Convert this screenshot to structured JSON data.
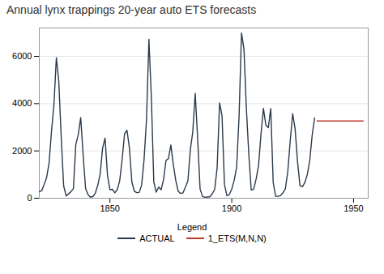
{
  "chart_data": {
    "type": "line",
    "title": "Annual lynx trappings 20-year auto ETS forecasts",
    "series": [
      {
        "name": "ACTUAL",
        "color": "#2b3a4a",
        "x": [
          1821,
          1822,
          1823,
          1824,
          1825,
          1826,
          1827,
          1828,
          1829,
          1830,
          1831,
          1832,
          1833,
          1834,
          1835,
          1836,
          1837,
          1838,
          1839,
          1840,
          1841,
          1842,
          1843,
          1844,
          1845,
          1846,
          1847,
          1848,
          1849,
          1850,
          1851,
          1852,
          1853,
          1854,
          1855,
          1856,
          1857,
          1858,
          1859,
          1860,
          1861,
          1862,
          1863,
          1864,
          1865,
          1866,
          1867,
          1868,
          1869,
          1870,
          1871,
          1872,
          1873,
          1874,
          1875,
          1876,
          1877,
          1878,
          1879,
          1880,
          1881,
          1882,
          1883,
          1884,
          1885,
          1886,
          1887,
          1888,
          1889,
          1890,
          1891,
          1892,
          1893,
          1894,
          1895,
          1896,
          1897,
          1898,
          1899,
          1900,
          1901,
          1902,
          1903,
          1904,
          1905,
          1906,
          1907,
          1908,
          1909,
          1910,
          1911,
          1912,
          1913,
          1914,
          1915,
          1916,
          1917,
          1918,
          1919,
          1920,
          1921,
          1922,
          1923,
          1924,
          1925,
          1926,
          1927,
          1928,
          1929,
          1930,
          1931,
          1932,
          1933,
          1934
        ],
        "values": [
          269,
          321,
          585,
          871,
          1475,
          2821,
          3928,
          5943,
          4950,
          2577,
          523,
          98,
          184,
          279,
          409,
          2285,
          2685,
          3409,
          1824,
          409,
          151,
          45,
          68,
          213,
          546,
          1033,
          2129,
          2536,
          957,
          361,
          377,
          225,
          360,
          731,
          1638,
          2725,
          2871,
          2119,
          684,
          299,
          236,
          245,
          552,
          1623,
          3311,
          6721,
          4245,
          687,
          255,
          473,
          358,
          784,
          1594,
          1676,
          2251,
          1426,
          756,
          299,
          201,
          229,
          469,
          736,
          2042,
          2811,
          4431,
          2511,
          389,
          73,
          39,
          49,
          59,
          188,
          377,
          1292,
          4031,
          3495,
          587,
          105,
          153,
          387,
          758,
          1307,
          3465,
          6991,
          6313,
          3794,
          1836,
          345,
          382,
          808,
          1388,
          2713,
          3800,
          3091,
          2985,
          3790,
          674,
          81,
          80,
          108,
          229,
          399,
          1132,
          2432,
          3574,
          2935,
          1537,
          529,
          485,
          662,
          1000,
          1590,
          2657,
          3396
        ]
      },
      {
        "name": "1_ETS(M,N,N)",
        "color": "#c0392b",
        "x": [
          1935,
          1954
        ],
        "values": [
          3265,
          3265
        ]
      }
    ],
    "xlim": [
      1821,
      1956
    ],
    "xticks": [
      1850,
      1900,
      1950
    ],
    "ylim": [
      0,
      7200
    ],
    "yticks": [
      0,
      2000,
      4000,
      6000
    ],
    "grid": "y",
    "legend": "bottom",
    "legend_title": "Legend"
  }
}
